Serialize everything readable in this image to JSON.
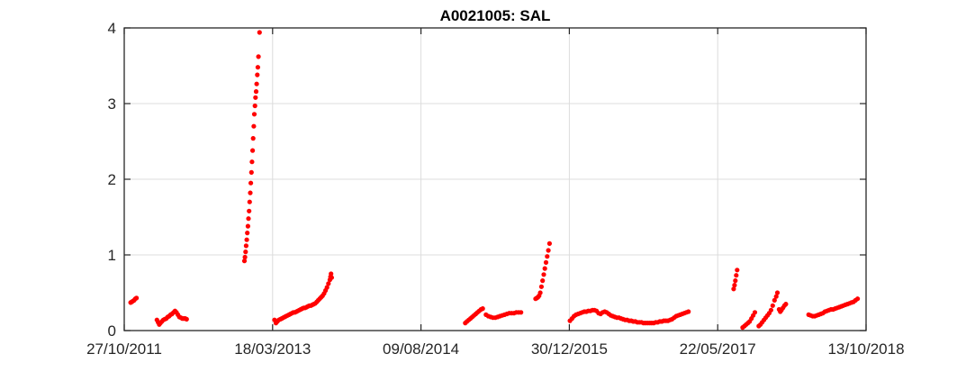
{
  "chart_data": {
    "type": "scatter",
    "title": "A0021005: SAL",
    "xlabel": "",
    "ylabel": "",
    "x_tick_labels": [
      "27/10/2011",
      "18/03/2013",
      "09/08/2014",
      "30/12/2015",
      "22/05/2017",
      "13/10/2018"
    ],
    "xlim": [
      "2011-10-27",
      "2018-10-13"
    ],
    "y_ticks": [
      0,
      1,
      2,
      3,
      4
    ],
    "ylim": [
      0,
      4
    ],
    "grid": true,
    "marker_color": "#ff0000",
    "series": [
      {
        "points": [
          [
            "2011-11-18",
            0.37
          ],
          [
            "2011-11-22",
            0.38
          ],
          [
            "2011-11-26",
            0.39
          ],
          [
            "2011-11-30",
            0.4
          ],
          [
            "2011-12-04",
            0.42
          ],
          [
            "2011-12-08",
            0.43
          ],
          [
            "2012-02-16",
            0.14
          ],
          [
            "2012-02-20",
            0.11
          ],
          [
            "2012-02-24",
            0.08
          ],
          [
            "2012-02-28",
            0.1
          ],
          [
            "2012-03-04",
            0.12
          ],
          [
            "2012-03-09",
            0.14
          ],
          [
            "2012-03-14",
            0.15
          ],
          [
            "2012-03-19",
            0.16
          ],
          [
            "2012-03-24",
            0.18
          ],
          [
            "2012-03-29",
            0.19
          ],
          [
            "2012-04-03",
            0.21
          ],
          [
            "2012-04-08",
            0.22
          ],
          [
            "2012-04-13",
            0.24
          ],
          [
            "2012-04-18",
            0.26
          ],
          [
            "2012-04-23",
            0.24
          ],
          [
            "2012-04-28",
            0.21
          ],
          [
            "2012-05-03",
            0.18
          ],
          [
            "2012-05-08",
            0.17
          ],
          [
            "2012-05-13",
            0.16
          ],
          [
            "2012-05-18",
            0.16
          ],
          [
            "2012-05-23",
            0.16
          ],
          [
            "2012-05-28",
            0.15
          ],
          [
            "2012-12-12",
            0.92
          ],
          [
            "2012-12-14",
            0.97
          ],
          [
            "2012-12-16",
            1.04
          ],
          [
            "2012-12-18",
            1.12
          ],
          [
            "2012-12-20",
            1.2
          ],
          [
            "2012-12-22",
            1.29
          ],
          [
            "2012-12-24",
            1.38
          ],
          [
            "2012-12-26",
            1.48
          ],
          [
            "2012-12-28",
            1.58
          ],
          [
            "2012-12-30",
            1.7
          ],
          [
            "2013-01-01",
            1.82
          ],
          [
            "2013-01-03",
            1.95
          ],
          [
            "2013-01-05",
            2.09
          ],
          [
            "2013-01-07",
            2.23
          ],
          [
            "2013-01-09",
            2.38
          ],
          [
            "2013-01-11",
            2.54
          ],
          [
            "2013-01-13",
            2.7
          ],
          [
            "2013-01-15",
            2.86
          ],
          [
            "2013-01-17",
            2.97
          ],
          [
            "2013-01-19",
            3.08
          ],
          [
            "2013-01-21",
            3.16
          ],
          [
            "2013-01-23",
            3.26
          ],
          [
            "2013-01-25",
            3.38
          ],
          [
            "2013-01-27",
            3.48
          ],
          [
            "2013-01-29",
            3.62
          ],
          [
            "2013-02-02",
            3.94
          ],
          [
            "2013-03-25",
            0.14
          ],
          [
            "2013-03-30",
            0.1
          ],
          [
            "2013-04-04",
            0.12
          ],
          [
            "2013-04-09",
            0.14
          ],
          [
            "2013-04-14",
            0.15
          ],
          [
            "2013-04-19",
            0.16
          ],
          [
            "2013-04-24",
            0.17
          ],
          [
            "2013-04-29",
            0.18
          ],
          [
            "2013-05-04",
            0.19
          ],
          [
            "2013-05-09",
            0.2
          ],
          [
            "2013-05-14",
            0.21
          ],
          [
            "2013-05-19",
            0.22
          ],
          [
            "2013-05-24",
            0.23
          ],
          [
            "2013-05-29",
            0.24
          ],
          [
            "2013-06-03",
            0.24
          ],
          [
            "2013-06-08",
            0.25
          ],
          [
            "2013-06-13",
            0.26
          ],
          [
            "2013-06-18",
            0.27
          ],
          [
            "2013-06-23",
            0.28
          ],
          [
            "2013-06-28",
            0.29
          ],
          [
            "2013-07-03",
            0.3
          ],
          [
            "2013-07-08",
            0.3
          ],
          [
            "2013-07-13",
            0.31
          ],
          [
            "2013-07-18",
            0.32
          ],
          [
            "2013-07-23",
            0.33
          ],
          [
            "2013-07-28",
            0.33
          ],
          [
            "2013-08-02",
            0.34
          ],
          [
            "2013-08-07",
            0.35
          ],
          [
            "2013-08-12",
            0.36
          ],
          [
            "2013-08-17",
            0.38
          ],
          [
            "2013-08-22",
            0.4
          ],
          [
            "2013-08-27",
            0.42
          ],
          [
            "2013-09-01",
            0.44
          ],
          [
            "2013-09-06",
            0.46
          ],
          [
            "2013-09-11",
            0.49
          ],
          [
            "2013-09-16",
            0.53
          ],
          [
            "2013-09-21",
            0.57
          ],
          [
            "2013-09-26",
            0.62
          ],
          [
            "2013-10-01",
            0.67
          ],
          [
            "2013-10-03",
            0.71
          ],
          [
            "2013-10-05",
            0.75
          ],
          [
            "2013-10-07",
            0.7
          ],
          [
            "2015-01-08",
            0.1
          ],
          [
            "2015-01-14",
            0.12
          ],
          [
            "2015-01-20",
            0.14
          ],
          [
            "2015-01-26",
            0.16
          ],
          [
            "2015-02-01",
            0.18
          ],
          [
            "2015-02-07",
            0.2
          ],
          [
            "2015-02-13",
            0.22
          ],
          [
            "2015-02-19",
            0.24
          ],
          [
            "2015-02-25",
            0.26
          ],
          [
            "2015-03-03",
            0.28
          ],
          [
            "2015-03-09",
            0.29
          ],
          [
            "2015-03-20",
            0.21
          ],
          [
            "2015-03-28",
            0.19
          ],
          [
            "2015-04-05",
            0.18
          ],
          [
            "2015-04-13",
            0.17
          ],
          [
            "2015-04-21",
            0.17
          ],
          [
            "2015-04-29",
            0.18
          ],
          [
            "2015-05-07",
            0.19
          ],
          [
            "2015-05-15",
            0.2
          ],
          [
            "2015-05-23",
            0.21
          ],
          [
            "2015-05-31",
            0.22
          ],
          [
            "2015-06-08",
            0.23
          ],
          [
            "2015-06-16",
            0.23
          ],
          [
            "2015-06-24",
            0.23
          ],
          [
            "2015-07-02",
            0.24
          ],
          [
            "2015-07-10",
            0.24
          ],
          [
            "2015-07-18",
            0.24
          ],
          [
            "2015-09-06",
            0.42
          ],
          [
            "2015-09-10",
            0.43
          ],
          [
            "2015-09-14",
            0.44
          ],
          [
            "2015-09-18",
            0.46
          ],
          [
            "2015-09-22",
            0.5
          ],
          [
            "2015-09-26",
            0.58
          ],
          [
            "2015-09-30",
            0.66
          ],
          [
            "2015-10-04",
            0.74
          ],
          [
            "2015-10-08",
            0.82
          ],
          [
            "2015-10-12",
            0.9
          ],
          [
            "2015-10-16",
            0.98
          ],
          [
            "2015-10-20",
            1.06
          ],
          [
            "2015-10-24",
            1.15
          ],
          [
            "2016-01-02",
            0.13
          ],
          [
            "2016-01-09",
            0.16
          ],
          [
            "2016-01-16",
            0.19
          ],
          [
            "2016-01-23",
            0.21
          ],
          [
            "2016-01-30",
            0.22
          ],
          [
            "2016-02-06",
            0.23
          ],
          [
            "2016-02-13",
            0.24
          ],
          [
            "2016-02-20",
            0.25
          ],
          [
            "2016-02-27",
            0.25
          ],
          [
            "2016-03-05",
            0.26
          ],
          [
            "2016-03-12",
            0.26
          ],
          [
            "2016-03-19",
            0.27
          ],
          [
            "2016-03-26",
            0.27
          ],
          [
            "2016-04-02",
            0.26
          ],
          [
            "2016-04-09",
            0.23
          ],
          [
            "2016-04-16",
            0.22
          ],
          [
            "2016-04-23",
            0.24
          ],
          [
            "2016-04-30",
            0.25
          ],
          [
            "2016-05-07",
            0.24
          ],
          [
            "2016-05-14",
            0.22
          ],
          [
            "2016-05-21",
            0.2
          ],
          [
            "2016-05-28",
            0.19
          ],
          [
            "2016-06-04",
            0.18
          ],
          [
            "2016-06-11",
            0.17
          ],
          [
            "2016-06-18",
            0.17
          ],
          [
            "2016-06-25",
            0.16
          ],
          [
            "2016-07-02",
            0.15
          ],
          [
            "2016-07-09",
            0.14
          ],
          [
            "2016-07-16",
            0.14
          ],
          [
            "2016-07-23",
            0.13
          ],
          [
            "2016-07-30",
            0.13
          ],
          [
            "2016-08-06",
            0.12
          ],
          [
            "2016-08-13",
            0.12
          ],
          [
            "2016-08-20",
            0.11
          ],
          [
            "2016-08-27",
            0.11
          ],
          [
            "2016-09-03",
            0.11
          ],
          [
            "2016-09-10",
            0.1
          ],
          [
            "2016-09-17",
            0.1
          ],
          [
            "2016-09-24",
            0.1
          ],
          [
            "2016-10-01",
            0.1
          ],
          [
            "2016-10-08",
            0.1
          ],
          [
            "2016-10-15",
            0.1
          ],
          [
            "2016-10-22",
            0.11
          ],
          [
            "2016-10-29",
            0.11
          ],
          [
            "2016-11-05",
            0.12
          ],
          [
            "2016-11-12",
            0.12
          ],
          [
            "2016-11-19",
            0.13
          ],
          [
            "2016-11-26",
            0.13
          ],
          [
            "2016-12-03",
            0.13
          ],
          [
            "2016-12-10",
            0.14
          ],
          [
            "2016-12-17",
            0.15
          ],
          [
            "2016-12-24",
            0.17
          ],
          [
            "2016-12-31",
            0.19
          ],
          [
            "2017-01-07",
            0.2
          ],
          [
            "2017-01-14",
            0.21
          ],
          [
            "2017-01-21",
            0.22
          ],
          [
            "2017-01-28",
            0.23
          ],
          [
            "2017-02-04",
            0.24
          ],
          [
            "2017-02-11",
            0.25
          ],
          [
            "2017-07-16",
            0.55
          ],
          [
            "2017-07-19",
            0.6
          ],
          [
            "2017-07-22",
            0.66
          ],
          [
            "2017-07-25",
            0.73
          ],
          [
            "2017-07-28",
            0.8
          ],
          [
            "2017-08-16",
            0.04
          ],
          [
            "2017-08-22",
            0.06
          ],
          [
            "2017-08-28",
            0.08
          ],
          [
            "2017-09-03",
            0.1
          ],
          [
            "2017-09-09",
            0.12
          ],
          [
            "2017-09-15",
            0.16
          ],
          [
            "2017-09-21",
            0.2
          ],
          [
            "2017-09-27",
            0.24
          ],
          [
            "2017-10-10",
            0.06
          ],
          [
            "2017-10-16",
            0.08
          ],
          [
            "2017-10-22",
            0.11
          ],
          [
            "2017-10-28",
            0.14
          ],
          [
            "2017-11-03",
            0.17
          ],
          [
            "2017-11-09",
            0.2
          ],
          [
            "2017-11-15",
            0.23
          ],
          [
            "2017-11-21",
            0.27
          ],
          [
            "2017-11-27",
            0.33
          ],
          [
            "2017-12-03",
            0.4
          ],
          [
            "2017-12-09",
            0.45
          ],
          [
            "2017-12-13",
            0.5
          ],
          [
            "2017-12-19",
            0.28
          ],
          [
            "2017-12-23",
            0.25
          ],
          [
            "2017-12-27",
            0.27
          ],
          [
            "2018-01-01",
            0.3
          ],
          [
            "2018-01-06",
            0.33
          ],
          [
            "2018-01-11",
            0.35
          ],
          [
            "2018-03-30",
            0.21
          ],
          [
            "2018-04-06",
            0.2
          ],
          [
            "2018-04-13",
            0.19
          ],
          [
            "2018-04-20",
            0.19
          ],
          [
            "2018-04-27",
            0.2
          ],
          [
            "2018-05-04",
            0.21
          ],
          [
            "2018-05-11",
            0.22
          ],
          [
            "2018-05-18",
            0.23
          ],
          [
            "2018-05-25",
            0.25
          ],
          [
            "2018-06-01",
            0.26
          ],
          [
            "2018-06-08",
            0.27
          ],
          [
            "2018-06-15",
            0.28
          ],
          [
            "2018-06-22",
            0.28
          ],
          [
            "2018-06-29",
            0.29
          ],
          [
            "2018-07-06",
            0.3
          ],
          [
            "2018-07-13",
            0.31
          ],
          [
            "2018-07-20",
            0.32
          ],
          [
            "2018-07-27",
            0.33
          ],
          [
            "2018-08-03",
            0.34
          ],
          [
            "2018-08-10",
            0.35
          ],
          [
            "2018-08-17",
            0.36
          ],
          [
            "2018-08-24",
            0.37
          ],
          [
            "2018-08-31",
            0.38
          ],
          [
            "2018-09-07",
            0.4
          ],
          [
            "2018-09-14",
            0.42
          ]
        ]
      }
    ]
  }
}
